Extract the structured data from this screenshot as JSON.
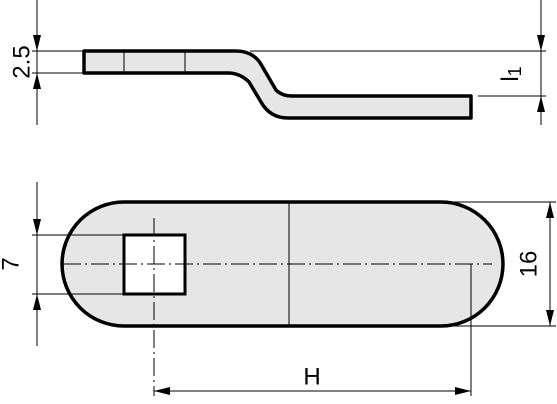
{
  "dimensions": {
    "thickness": "2.5",
    "offset_height": "l",
    "offset_height_subscript": "1",
    "square_hole": "7",
    "width": "16",
    "length": "H"
  }
}
